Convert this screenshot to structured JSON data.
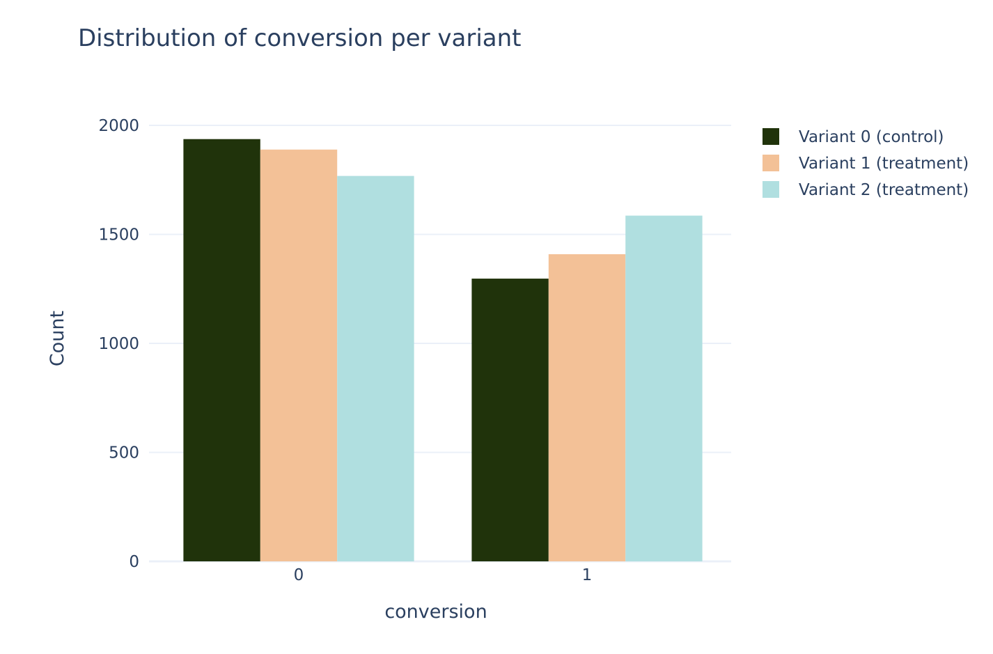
{
  "chart_data": {
    "type": "bar",
    "title": "Distribution of conversion per variant",
    "xlabel": "conversion",
    "ylabel": "Count",
    "categories": [
      "0",
      "1"
    ],
    "ylim": [
      0,
      2050
    ],
    "yticks": [
      0,
      500,
      1000,
      1500,
      2000
    ],
    "yticklabels": [
      "0",
      "500",
      "1000",
      "1500",
      "2000"
    ],
    "grid": true,
    "legend_position": "top-right",
    "barmode": "group",
    "series": [
      {
        "name": "Variant 0 (control)",
        "values": [
          1937,
          1297
        ],
        "color": "#20330b"
      },
      {
        "name": "Variant 1 (treatment)",
        "values": [
          1889,
          1409
        ],
        "color": "#f3c197"
      },
      {
        "name": "Variant 2 (treatment)",
        "values": [
          1768,
          1586
        ],
        "color": "#b0dfe0"
      }
    ]
  }
}
